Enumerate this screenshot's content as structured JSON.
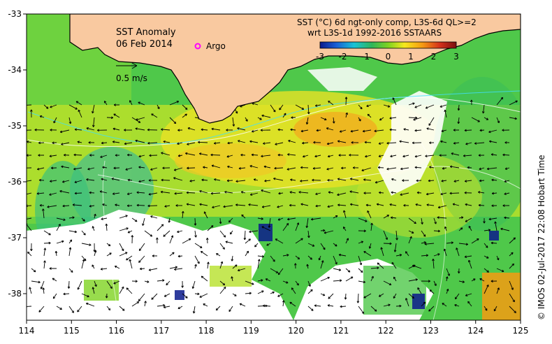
{
  "map": {
    "title": "SST Anomaly",
    "date": "06 Feb 2014",
    "argo_label": "Argo",
    "scale_label": "0.5 m/s",
    "colorbar_title_1": "SST (°C) 6d ngt-only comp, L3S-6d QL>=2",
    "colorbar_title_2": "wrt L3S-1d 1992-2016 SSTAARS",
    "colorbar_ticks": [
      "-3",
      "-2",
      "-1",
      "0",
      "1",
      "2",
      "3"
    ],
    "colorbar_range": [
      -3,
      3
    ],
    "x_ticks": [
      "114",
      "115",
      "116",
      "117",
      "118",
      "119",
      "120",
      "121",
      "122",
      "123",
      "124",
      "125"
    ],
    "y_ticks": [
      "-33",
      "-34",
      "-35",
      "-36",
      "-37",
      "-38"
    ],
    "credit": "© IMOS 02-Jul-2017 22:08 Hobart Time",
    "colors": {
      "land": "#f9c9a0",
      "argo": "#ff00ff",
      "colorbar": [
        "#0a1a8c",
        "#1a5fd6",
        "#19c3d6",
        "#2fb55a",
        "#7ed321",
        "#f7e81c",
        "#f59b12",
        "#d4301a",
        "#7a0f0f"
      ]
    }
  }
}
